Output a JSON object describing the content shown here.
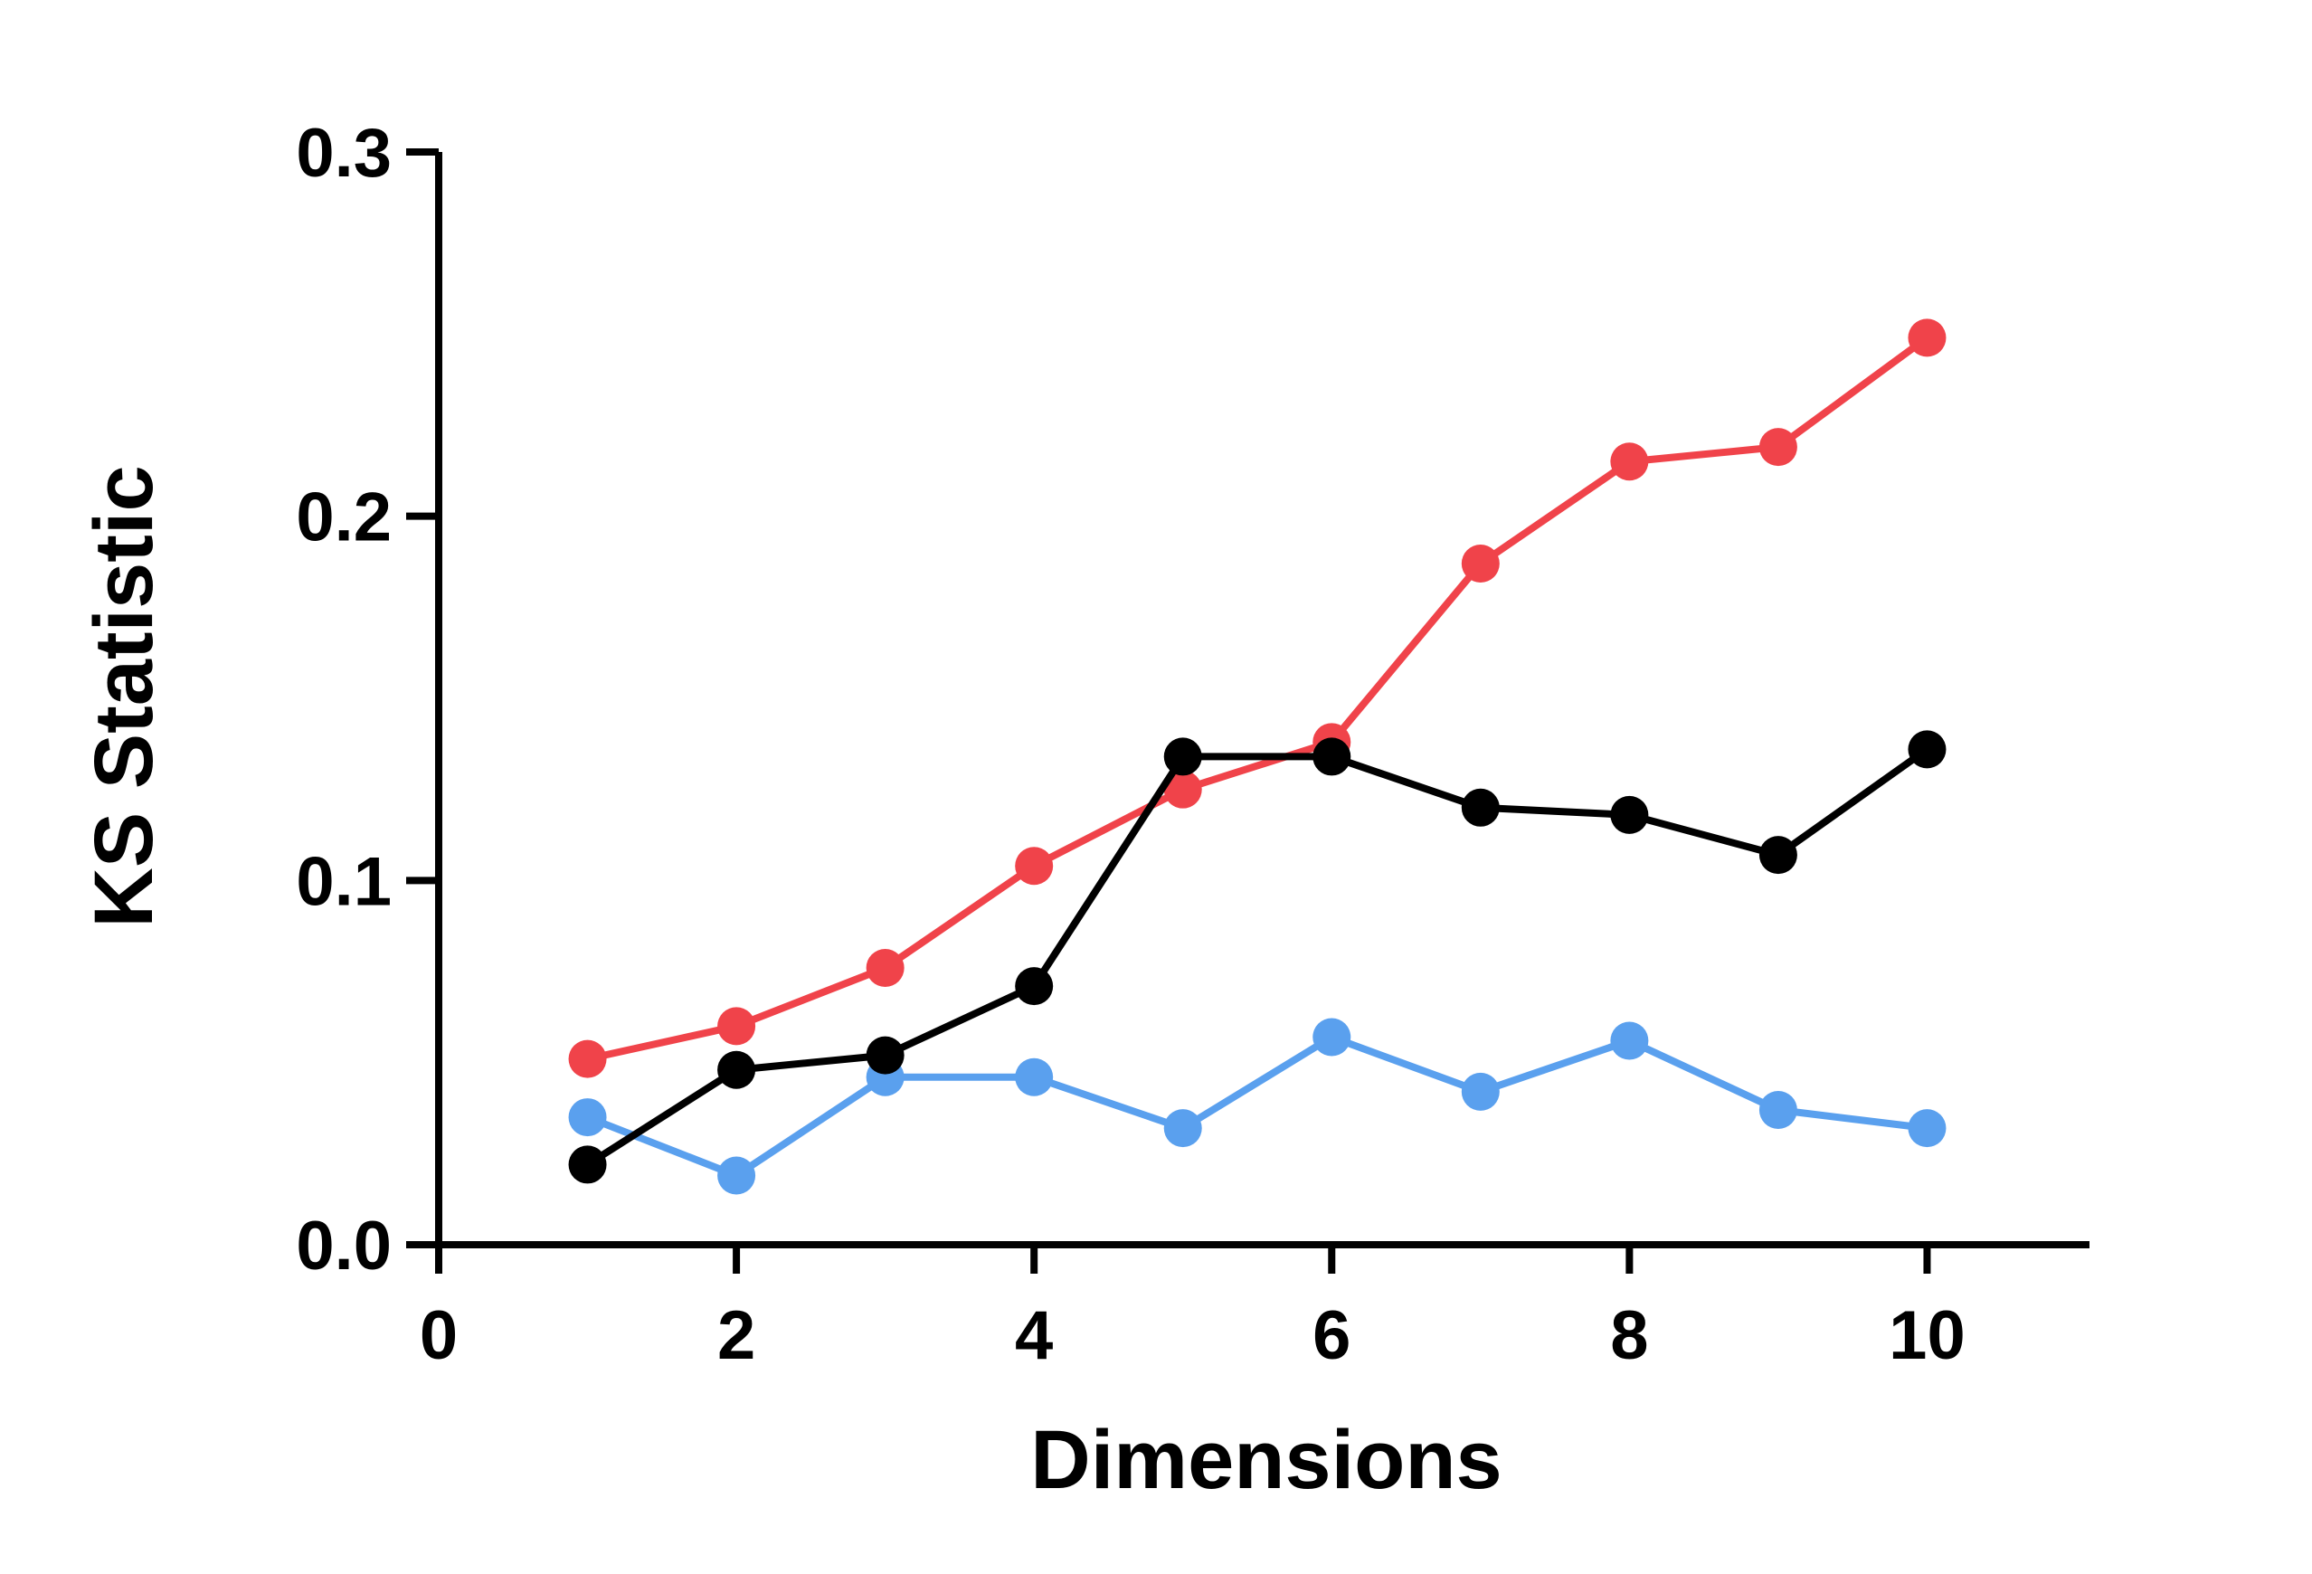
{
  "chart_data": {
    "type": "line",
    "title": "",
    "xlabel": "Dimensions",
    "ylabel": "KS Statistic",
    "xlim": [
      0,
      11
    ],
    "ylim": [
      0,
      0.3
    ],
    "xticks": [
      "0",
      "2",
      "4",
      "6",
      "8",
      "10"
    ],
    "yticks": [
      "0.0",
      "0.1",
      "0.2",
      "0.3"
    ],
    "grid": false,
    "legend": "none",
    "x": [
      1,
      2,
      3,
      4,
      5,
      6,
      7,
      8,
      9,
      10
    ],
    "series": [
      {
        "color": "#f0434a",
        "values": [
          0.051,
          0.06,
          0.076,
          0.104,
          0.125,
          0.138,
          0.187,
          0.215,
          0.219,
          0.249
        ]
      },
      {
        "color": "#000000",
        "values": [
          0.022,
          0.048,
          0.052,
          0.071,
          0.134,
          0.134,
          0.12,
          0.118,
          0.107,
          0.136
        ]
      },
      {
        "color": "#5aa0ee",
        "values": [
          0.035,
          0.019,
          0.046,
          0.046,
          0.032,
          0.057,
          0.042,
          0.056,
          0.037,
          0.032
        ]
      }
    ]
  }
}
